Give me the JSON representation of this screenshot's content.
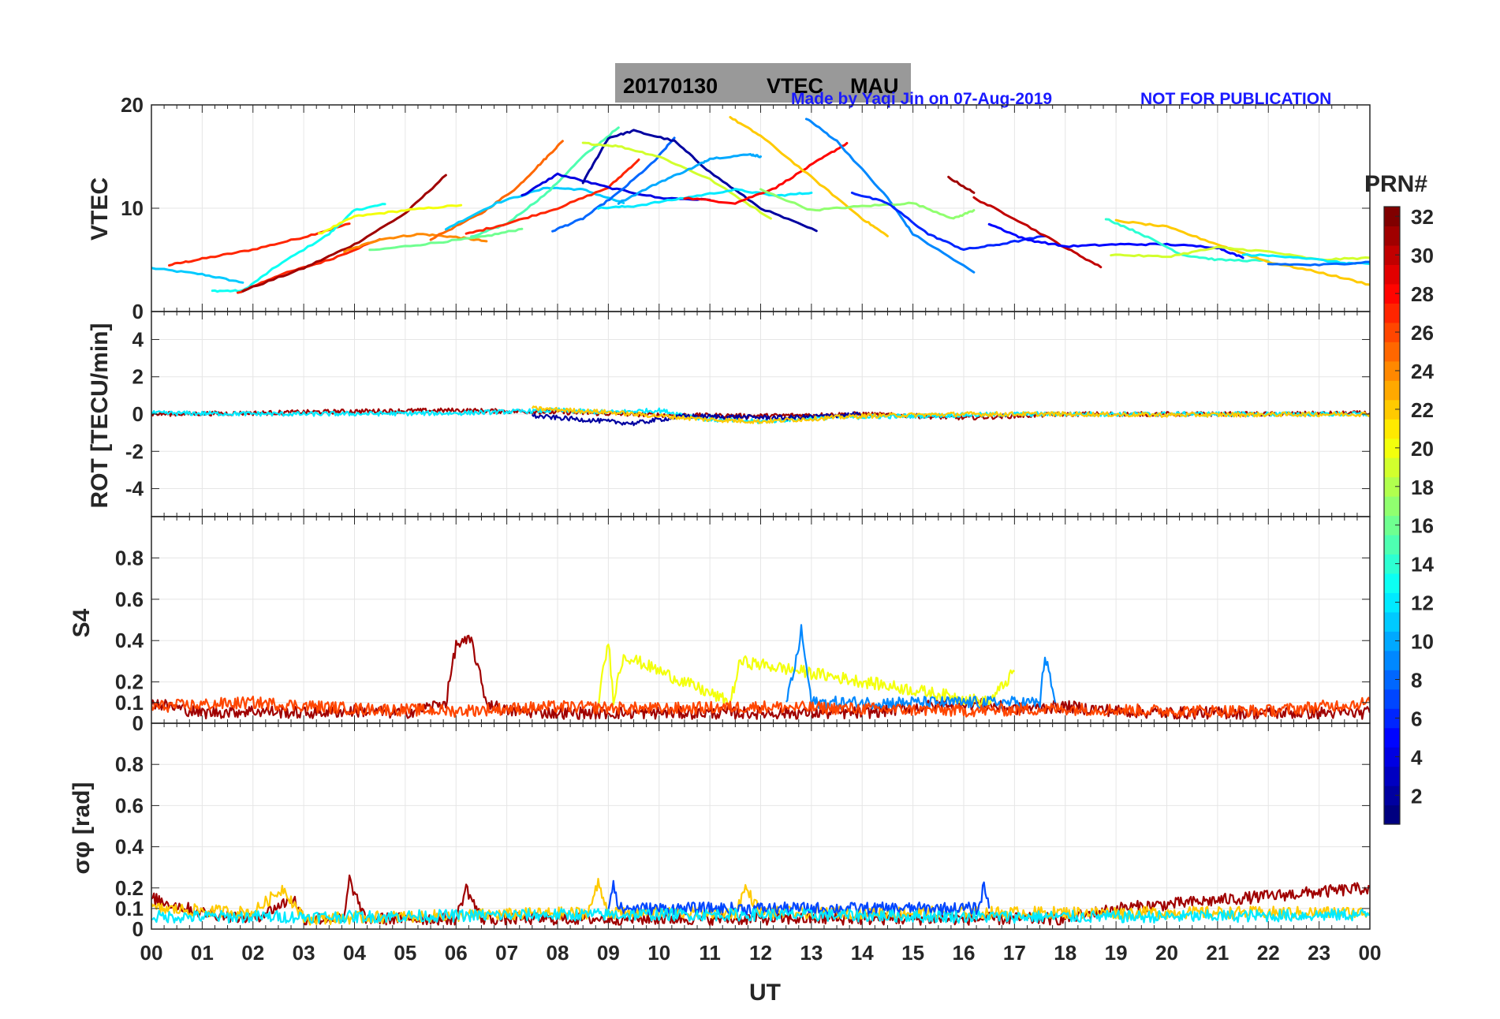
{
  "header": {
    "title_date": "20170130",
    "title_param": "VTEC",
    "title_station": "MAU",
    "credit": "Made by Yaqi Jin on 07-Aug-2019",
    "notice": "NOT FOR PUBLICATION",
    "credit_color": "#1a1aff",
    "title_box_color": "#999999"
  },
  "colorbar": {
    "label": "PRN#",
    "ticks": [
      "2",
      "4",
      "6",
      "8",
      "10",
      "12",
      "14",
      "16",
      "18",
      "20",
      "22",
      "24",
      "26",
      "28",
      "30",
      "32"
    ],
    "min": 1,
    "max": 32,
    "colormap": "jet"
  },
  "x_axis": {
    "label": "UT",
    "ticks": [
      "00",
      "01",
      "02",
      "03",
      "04",
      "05",
      "06",
      "07",
      "08",
      "09",
      "10",
      "11",
      "12",
      "13",
      "14",
      "15",
      "16",
      "17",
      "18",
      "19",
      "20",
      "21",
      "22",
      "23",
      "00"
    ],
    "range": [
      0,
      24
    ]
  },
  "chart_data": [
    {
      "type": "line",
      "panel": "vtec",
      "ylabel": "VTEC",
      "ylim": [
        0,
        20
      ],
      "yticks": [
        "0",
        "10",
        "20"
      ],
      "grid": true,
      "series": [
        {
          "prn": 11,
          "x": [
            0.0,
            1.0,
            1.8
          ],
          "y": [
            4.2,
            3.6,
            2.8
          ]
        },
        {
          "prn": 27,
          "x": [
            0.35,
            1.0,
            2.0,
            3.0,
            3.9
          ],
          "y": [
            4.5,
            5.1,
            6.0,
            7.2,
            8.5
          ]
        },
        {
          "prn": 13,
          "x": [
            1.2,
            1.8,
            2.5,
            3.5,
            4.0,
            4.6
          ],
          "y": [
            2.0,
            2.0,
            4.5,
            7.5,
            9.8,
            10.4
          ]
        },
        {
          "prn": 27,
          "x": [
            1.7,
            2.5,
            3.5,
            4.5
          ],
          "y": [
            1.8,
            3.5,
            5.0,
            7.0
          ]
        },
        {
          "prn": 31,
          "x": [
            1.8,
            3.0,
            4.0,
            5.0,
            5.8
          ],
          "y": [
            2.0,
            4.2,
            6.5,
            9.5,
            13.2
          ]
        },
        {
          "prn": 20,
          "x": [
            3.3,
            4.0,
            5.0,
            6.1
          ],
          "y": [
            7.5,
            9.2,
            9.8,
            10.3
          ]
        },
        {
          "prn": 24,
          "x": [
            3.8,
            4.5,
            5.3,
            6.0,
            6.6
          ],
          "y": [
            5.8,
            7.0,
            7.5,
            7.2,
            6.8
          ]
        },
        {
          "prn": 16,
          "x": [
            4.3,
            5.5,
            6.5,
            7.3
          ],
          "y": [
            5.9,
            6.6,
            7.2,
            8.0
          ]
        },
        {
          "prn": 25,
          "x": [
            5.5,
            6.5,
            7.2,
            7.7,
            8.1
          ],
          "y": [
            7.0,
            9.5,
            12.0,
            14.5,
            16.5
          ]
        },
        {
          "prn": 11,
          "x": [
            5.8,
            6.8,
            7.8,
            8.5,
            9.3
          ],
          "y": [
            8.0,
            10.5,
            12.0,
            11.8,
            10.5
          ]
        },
        {
          "prn": 15,
          "x": [
            6.3,
            7.0,
            7.8,
            8.5,
            9.2
          ],
          "y": [
            7.2,
            8.5,
            11.5,
            15.0,
            17.8
          ]
        },
        {
          "prn": 27,
          "x": [
            6.2,
            7.0,
            8.0,
            9.0,
            9.6
          ],
          "y": [
            7.5,
            8.5,
            10.0,
            12.0,
            14.7
          ]
        },
        {
          "prn": 4,
          "x": [
            7.3,
            8.0,
            9.0,
            10.0,
            11.0
          ],
          "y": [
            11.2,
            13.3,
            12.0,
            11.0,
            10.8
          ]
        },
        {
          "prn": 8,
          "x": [
            7.9,
            8.5,
            9.2,
            9.9,
            10.3
          ],
          "y": [
            7.8,
            9.0,
            11.5,
            14.5,
            16.8
          ]
        },
        {
          "prn": 2,
          "x": [
            8.5,
            9.0,
            9.5,
            10.3,
            11.0,
            12.0,
            13.1
          ],
          "y": [
            12.5,
            16.8,
            17.5,
            16.5,
            13.5,
            10.0,
            7.8
          ]
        },
        {
          "prn": 19,
          "x": [
            8.5,
            9.2,
            10.0,
            11.0,
            12.2
          ],
          "y": [
            16.3,
            16.0,
            15.0,
            12.8,
            9.0
          ]
        },
        {
          "prn": 10,
          "x": [
            9.2,
            10.0,
            10.7,
            11.0,
            11.8,
            12.0
          ],
          "y": [
            10.5,
            12.5,
            14.0,
            14.8,
            15.2,
            15.0
          ]
        },
        {
          "prn": 12,
          "x": [
            8.8,
            9.5,
            10.5,
            11.5,
            12.3,
            13.0
          ],
          "y": [
            10.0,
            10.2,
            11.0,
            11.8,
            11.2,
            11.5
          ]
        },
        {
          "prn": 28,
          "x": [
            10.5,
            11.5,
            12.3,
            13.1,
            13.7
          ],
          "y": [
            11.0,
            10.5,
            12.0,
            14.5,
            16.3
          ]
        },
        {
          "prn": 22,
          "x": [
            11.4,
            12.0,
            13.0,
            14.0,
            14.5
          ],
          "y": [
            18.8,
            17.0,
            13.0,
            9.0,
            7.3
          ]
        },
        {
          "prn": 9,
          "x": [
            12.9,
            13.5,
            14.5,
            15.0,
            16.2
          ],
          "y": [
            18.7,
            16.5,
            11.0,
            7.5,
            3.8
          ]
        },
        {
          "prn": 17,
          "x": [
            12.0,
            13.0,
            14.0,
            15.0,
            15.8,
            16.2
          ],
          "y": [
            11.8,
            9.8,
            10.2,
            10.5,
            9.0,
            9.8
          ]
        },
        {
          "prn": 6,
          "x": [
            13.8,
            14.5,
            15.3,
            16.0,
            16.7,
            17.6
          ],
          "y": [
            11.5,
            10.5,
            7.5,
            6.0,
            6.5,
            7.3
          ]
        },
        {
          "prn": 31,
          "x": [
            15.7,
            16.2
          ],
          "y": [
            13.0,
            11.5
          ]
        },
        {
          "prn": 30,
          "x": [
            16.2,
            17.0,
            18.0,
            18.7
          ],
          "y": [
            11.0,
            9.0,
            6.2,
            4.3
          ]
        },
        {
          "prn": 5,
          "x": [
            16.5,
            17.2,
            18.0,
            19.0,
            20.0,
            21.0,
            21.5
          ],
          "y": [
            8.5,
            7.0,
            6.3,
            6.5,
            6.5,
            6.2,
            5.2
          ]
        },
        {
          "prn": 14,
          "x": [
            18.8,
            19.5,
            20.3,
            21.0,
            22.0
          ],
          "y": [
            9.0,
            7.5,
            5.5,
            5.0,
            4.9
          ]
        },
        {
          "prn": 22,
          "x": [
            19.0,
            20.0,
            21.0,
            22.0,
            23.0,
            24.0
          ],
          "y": [
            8.8,
            8.2,
            6.5,
            4.8,
            3.8,
            2.6
          ]
        },
        {
          "prn": 19,
          "x": [
            18.9,
            20.0,
            21.0,
            22.0,
            23.0,
            24.0
          ],
          "y": [
            5.5,
            5.3,
            6.2,
            5.8,
            5.0,
            5.2
          ]
        },
        {
          "prn": 12,
          "x": [
            21.5,
            22.5,
            23.5,
            24.0
          ],
          "y": [
            5.5,
            5.3,
            4.7,
            4.6
          ]
        },
        {
          "prn": 8,
          "x": [
            22.0,
            23.0,
            24.0
          ],
          "y": [
            4.6,
            4.5,
            4.8
          ]
        }
      ]
    },
    {
      "type": "line",
      "panel": "rot",
      "ylabel": "ROT [TECU/min]",
      "ylim": [
        -5.5,
        5.5
      ],
      "yticks": [
        "-4",
        "-2",
        "0",
        "2",
        "4"
      ],
      "grid": true,
      "series": [
        {
          "prn": 31,
          "x": [
            0,
            2,
            4,
            6,
            8,
            10,
            12,
            14,
            16,
            18,
            20,
            22,
            24
          ],
          "y": [
            0,
            0.05,
            0.15,
            0.2,
            0.1,
            -0.05,
            -0.1,
            0,
            -0.2,
            0,
            0,
            0,
            0.05
          ]
        },
        {
          "prn": 12,
          "x": [
            0,
            3,
            6,
            8,
            9,
            10,
            11,
            12,
            13,
            15,
            17,
            19,
            21,
            24
          ],
          "y": [
            0.05,
            0,
            0.05,
            0.2,
            0.1,
            0.2,
            -0.3,
            -0.4,
            -0.2,
            -0.1,
            0,
            0,
            0,
            0
          ]
        },
        {
          "prn": 2,
          "x": [
            7.5,
            8.5,
            9.5,
            10.5,
            12.5,
            14
          ],
          "y": [
            -0.1,
            -0.3,
            -0.5,
            -0.1,
            -0.2,
            0
          ]
        },
        {
          "prn": 22,
          "x": [
            7.5,
            9,
            11,
            12,
            14,
            16,
            18,
            20,
            24
          ],
          "y": [
            0.3,
            0.1,
            -0.3,
            -0.4,
            -0.1,
            0,
            0,
            -0.05,
            0
          ]
        }
      ]
    },
    {
      "type": "line",
      "panel": "s4",
      "ylabel": "S4",
      "ylim": [
        0,
        1
      ],
      "yticks": [
        "0",
        "0.1",
        "0.2",
        "0.4",
        "0.6",
        "0.8"
      ],
      "grid": true,
      "series": [
        {
          "prn": 31,
          "x": [
            0,
            1,
            2,
            3,
            4,
            5,
            5.8,
            6.0,
            6.3,
            6.6,
            7,
            8,
            9,
            10,
            12,
            14,
            16,
            17,
            18,
            19,
            20,
            24
          ],
          "y": [
            0.1,
            0.05,
            0.06,
            0.05,
            0.06,
            0.05,
            0.1,
            0.38,
            0.4,
            0.1,
            0.06,
            0.05,
            0.05,
            0.05,
            0.05,
            0.05,
            0.1,
            0.07,
            0.08,
            0.06,
            0.05,
            0.05
          ]
        },
        {
          "prn": 20,
          "x": [
            8.8,
            9.0,
            9.1,
            9.3,
            11.4,
            11.6,
            16.5,
            17
          ],
          "y": [
            0.1,
            0.4,
            0.12,
            0.33,
            0.1,
            0.3,
            0.1,
            0.25
          ]
        },
        {
          "prn": 9,
          "x": [
            12.5,
            12.7,
            12.8,
            13.0,
            17.5,
            17.6,
            17.8
          ],
          "y": [
            0.1,
            0.3,
            0.45,
            0.1,
            0.1,
            0.33,
            0.1
          ]
        },
        {
          "prn": 26,
          "x": [
            0,
            2,
            4,
            6,
            8,
            10,
            12,
            14,
            16,
            18,
            20,
            22,
            24
          ],
          "y": [
            0.08,
            0.1,
            0.07,
            0.06,
            0.08,
            0.07,
            0.08,
            0.07,
            0.06,
            0.07,
            0.06,
            0.06,
            0.1
          ]
        }
      ]
    },
    {
      "type": "line",
      "panel": "sigma_phi",
      "ylabel": "σφ [rad]",
      "ylim": [
        0,
        1
      ],
      "yticks": [
        "0",
        "0.1",
        "0.2",
        "0.4",
        "0.6",
        "0.8"
      ],
      "grid": true,
      "series": [
        {
          "prn": 31,
          "x": [
            0,
            1,
            2,
            2.8,
            3,
            3.8,
            3.9,
            4.2,
            6,
            6.2,
            6.5,
            8,
            12,
            16,
            18,
            19,
            24
          ],
          "y": [
            0.15,
            0.08,
            0.05,
            0.15,
            0.05,
            0.05,
            0.24,
            0.05,
            0.05,
            0.2,
            0.05,
            0.05,
            0.05,
            0.05,
            0.05,
            0.1,
            0.2
          ]
        },
        {
          "prn": 22,
          "x": [
            0,
            2,
            2.6,
            3,
            8.6,
            8.8,
            9,
            11.5,
            11.7,
            12,
            24
          ],
          "y": [
            0.1,
            0.08,
            0.2,
            0.05,
            0.08,
            0.22,
            0.08,
            0.08,
            0.2,
            0.08,
            0.08
          ]
        },
        {
          "prn": 7,
          "x": [
            9.0,
            9.1,
            9.2,
            16.3,
            16.4,
            16.5
          ],
          "y": [
            0.1,
            0.24,
            0.1,
            0.1,
            0.22,
            0.1
          ]
        },
        {
          "prn": 12,
          "x": [
            0,
            4,
            8,
            12,
            16,
            20,
            24
          ],
          "y": [
            0.06,
            0.06,
            0.07,
            0.07,
            0.06,
            0.06,
            0.07
          ]
        }
      ]
    }
  ]
}
